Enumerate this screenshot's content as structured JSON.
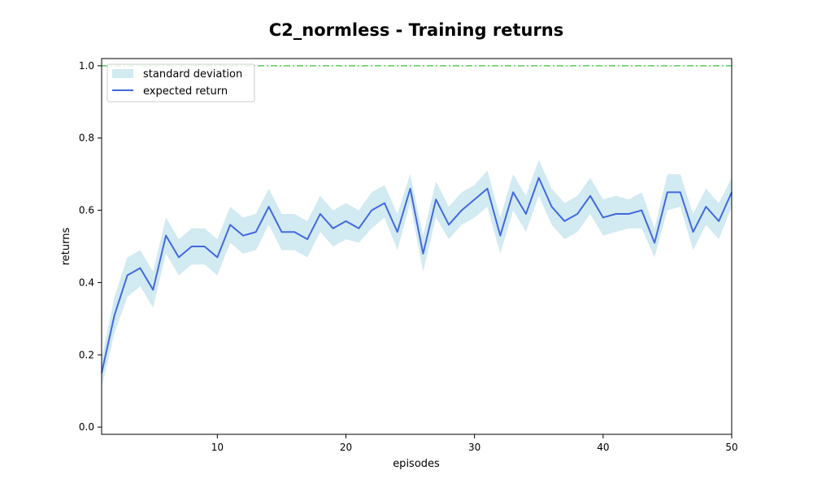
{
  "chart_data": {
    "type": "line",
    "title": "C2_normless - Training returns",
    "xlabel": "episodes",
    "ylabel": "returns",
    "xlim": [
      1,
      50
    ],
    "ylim": [
      -0.02,
      1.02
    ],
    "xticks": [
      10,
      20,
      30,
      40,
      50
    ],
    "yticks": [
      "0.0",
      "0.2",
      "0.4",
      "0.6",
      "0.8",
      "1.0"
    ],
    "reference_line": {
      "y": 1.0,
      "color": "#3cbf3c",
      "style": "dash-dot"
    },
    "legend": {
      "position": "top-left",
      "entries": [
        "standard deviation",
        "expected return"
      ]
    },
    "colors": {
      "mean": "#4169e1",
      "std_band": "#add8e6",
      "reference": "#3cbf3c"
    },
    "x": [
      1,
      2,
      3,
      4,
      5,
      6,
      7,
      8,
      9,
      10,
      11,
      12,
      13,
      14,
      15,
      16,
      17,
      18,
      19,
      20,
      21,
      22,
      23,
      24,
      25,
      26,
      27,
      28,
      29,
      30,
      31,
      32,
      33,
      34,
      35,
      36,
      37,
      38,
      39,
      40,
      41,
      42,
      43,
      44,
      45,
      46,
      47,
      48,
      49,
      50
    ],
    "series": [
      {
        "name": "expected return",
        "values": [
          0.15,
          0.31,
          0.42,
          0.44,
          0.38,
          0.53,
          0.47,
          0.5,
          0.5,
          0.47,
          0.56,
          0.53,
          0.54,
          0.61,
          0.54,
          0.54,
          0.52,
          0.59,
          0.55,
          0.57,
          0.55,
          0.6,
          0.62,
          0.54,
          0.66,
          0.48,
          0.63,
          0.56,
          0.6,
          0.63,
          0.66,
          0.53,
          0.65,
          0.59,
          0.69,
          0.61,
          0.57,
          0.59,
          0.64,
          0.58,
          0.59,
          0.59,
          0.6,
          0.51,
          0.65,
          0.65,
          0.54,
          0.61,
          0.57,
          0.65
        ],
        "std_lower": [
          0.11,
          0.26,
          0.36,
          0.39,
          0.33,
          0.48,
          0.42,
          0.45,
          0.45,
          0.42,
          0.51,
          0.48,
          0.49,
          0.56,
          0.49,
          0.49,
          0.47,
          0.54,
          0.5,
          0.52,
          0.51,
          0.55,
          0.58,
          0.49,
          0.62,
          0.43,
          0.58,
          0.52,
          0.56,
          0.58,
          0.61,
          0.48,
          0.6,
          0.54,
          0.64,
          0.56,
          0.52,
          0.54,
          0.59,
          0.53,
          0.54,
          0.55,
          0.55,
          0.47,
          0.6,
          0.61,
          0.49,
          0.56,
          0.52,
          0.61
        ],
        "std_upper": [
          0.19,
          0.36,
          0.47,
          0.49,
          0.43,
          0.58,
          0.52,
          0.55,
          0.55,
          0.52,
          0.61,
          0.58,
          0.59,
          0.66,
          0.59,
          0.59,
          0.57,
          0.64,
          0.6,
          0.62,
          0.6,
          0.65,
          0.67,
          0.59,
          0.7,
          0.53,
          0.68,
          0.61,
          0.65,
          0.67,
          0.71,
          0.58,
          0.7,
          0.64,
          0.74,
          0.66,
          0.62,
          0.64,
          0.69,
          0.63,
          0.64,
          0.63,
          0.65,
          0.55,
          0.7,
          0.7,
          0.59,
          0.66,
          0.62,
          0.69
        ]
      }
    ]
  }
}
